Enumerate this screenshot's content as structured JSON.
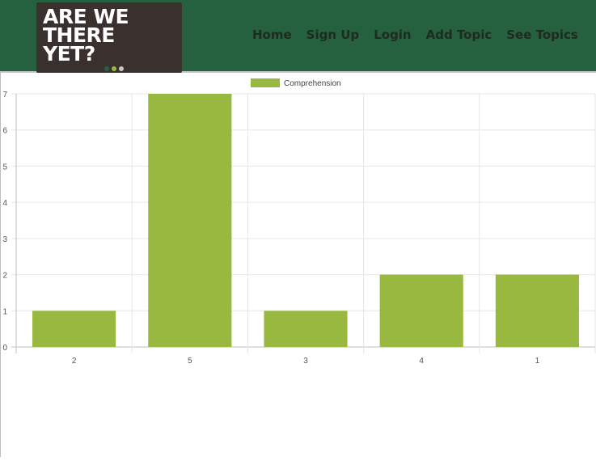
{
  "header": {
    "logo": {
      "lines": [
        "ARE WE",
        "THERE",
        "YET?"
      ],
      "dot_colors": [
        "#26613f",
        "#9bb83f",
        "#c8c8c8"
      ]
    },
    "nav": [
      {
        "label": "Home"
      },
      {
        "label": "Sign Up"
      },
      {
        "label": "Login"
      },
      {
        "label": "Add Topic"
      },
      {
        "label": "See Topics"
      }
    ],
    "colors": {
      "header_bg": "#26613f",
      "logo_bg": "#3a302e"
    }
  },
  "chart_data": {
    "type": "bar",
    "categories": [
      "2",
      "5",
      "3",
      "4",
      "1"
    ],
    "series": [
      {
        "name": "Comprehension",
        "values": [
          1,
          7,
          1,
          2,
          2
        ],
        "color": "#99b83f"
      }
    ],
    "yticks": [
      0,
      1,
      2,
      3,
      4,
      5,
      6,
      7
    ],
    "ylim": [
      0,
      7
    ],
    "grid": true,
    "legend": "top-center"
  }
}
